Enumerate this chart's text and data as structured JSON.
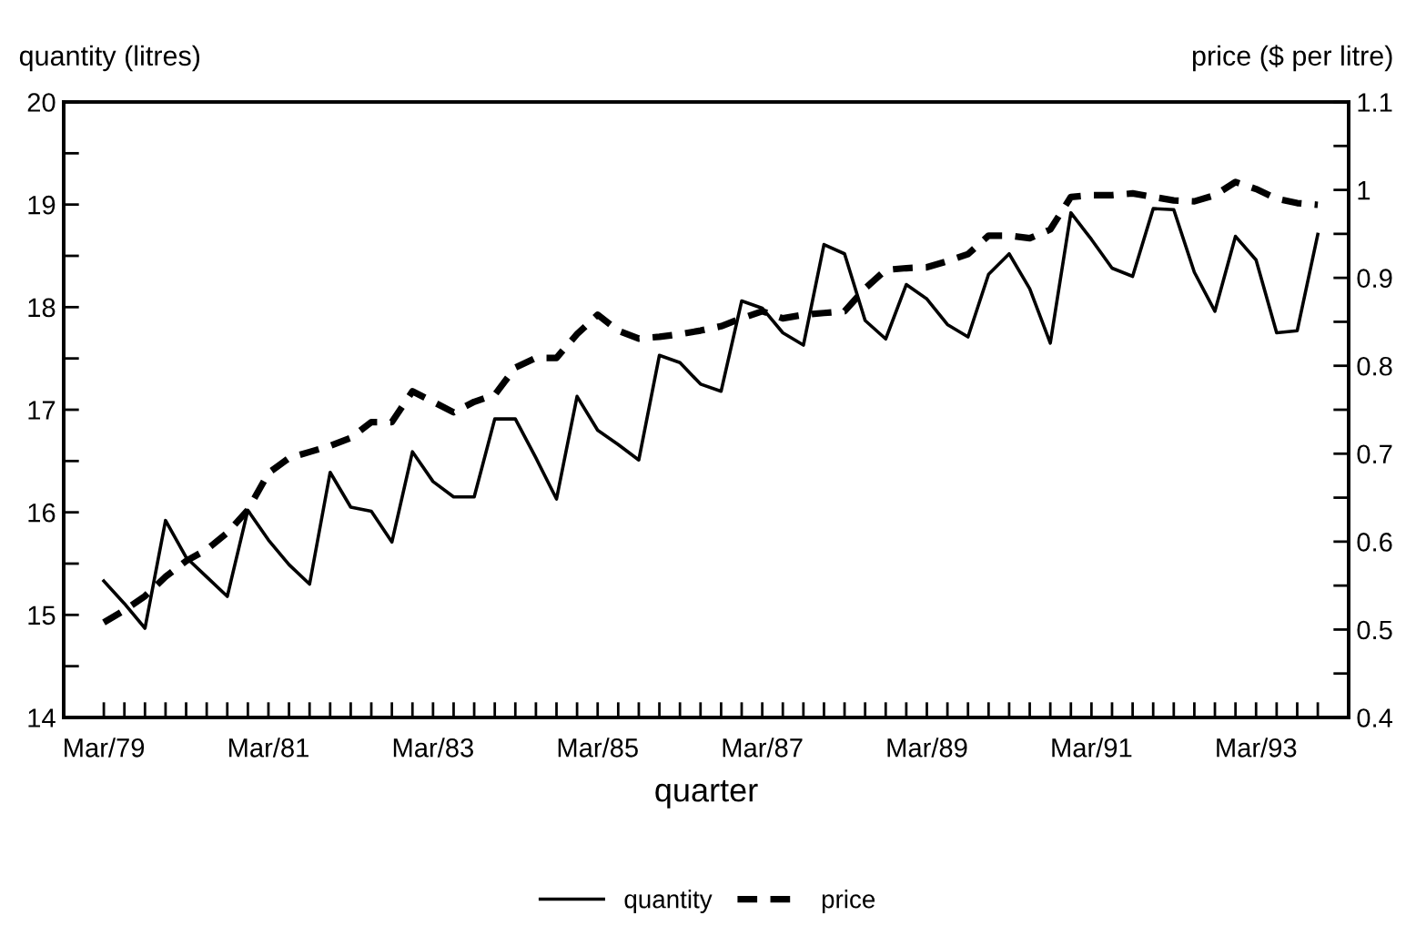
{
  "chart_data": {
    "type": "line",
    "xlabel": "quarter",
    "ylabel": "quantity (litres)",
    "y2label": "price ($ per litre)",
    "categories": [
      "Mar/79",
      null,
      null,
      null,
      null,
      null,
      null,
      null,
      "Mar/81",
      null,
      null,
      null,
      null,
      null,
      null,
      null,
      "Mar/83",
      null,
      null,
      null,
      null,
      null,
      null,
      null,
      "Mar/85",
      null,
      null,
      null,
      null,
      null,
      null,
      null,
      "Mar/87",
      null,
      null,
      null,
      null,
      null,
      null,
      null,
      "Mar/89",
      null,
      null,
      null,
      null,
      null,
      null,
      null,
      "Mar/91",
      null,
      null,
      null,
      null,
      null,
      null,
      null,
      "Mar/93",
      null,
      null,
      null
    ],
    "series": [
      {
        "name": "quantity",
        "color": "#000000",
        "line_style": "solid",
        "values": [
          15.33,
          15.11,
          14.87,
          15.92,
          15.56,
          15.37,
          15.18,
          16.02,
          15.73,
          15.49,
          15.3,
          16.39,
          16.05,
          16.01,
          15.71,
          16.59,
          16.3,
          16.15,
          16.15,
          16.91,
          16.91,
          16.53,
          16.13,
          17.13,
          16.8,
          16.66,
          16.51,
          17.53,
          17.46,
          17.25,
          17.18,
          18.06,
          17.99,
          17.75,
          17.63,
          18.61,
          18.52,
          17.87,
          17.69,
          18.22,
          18.08,
          17.83,
          17.71,
          18.32,
          18.52,
          18.18,
          17.65,
          18.92,
          18.66,
          18.38,
          18.3,
          18.96,
          18.95,
          18.34,
          17.96,
          18.69,
          18.46,
          17.75,
          17.77,
          18.71
        ]
      },
      {
        "name": "price",
        "color": "#000000",
        "line_style": "dashed",
        "axis": "y2",
        "values": [
          0.508,
          0.522,
          0.538,
          0.56,
          0.578,
          0.591,
          0.61,
          0.636,
          0.678,
          0.695,
          0.702,
          0.709,
          0.718,
          0.736,
          0.736,
          0.771,
          0.759,
          0.747,
          0.759,
          0.767,
          0.798,
          0.809,
          0.809,
          0.836,
          0.858,
          0.84,
          0.831,
          0.833,
          0.836,
          0.84,
          0.845,
          0.854,
          0.862,
          0.854,
          0.858,
          0.86,
          0.862,
          0.888,
          0.909,
          0.911,
          0.912,
          0.919,
          0.927,
          0.948,
          0.948,
          0.945,
          0.955,
          0.992,
          0.994,
          0.994,
          0.996,
          0.992,
          0.988,
          0.987,
          0.994,
          1.009,
          1.001,
          0.99,
          0.985,
          0.983
        ]
      }
    ],
    "ylim": [
      14,
      20
    ],
    "yticks": [
      14,
      {
        "value": 14.5,
        "label": null
      },
      15,
      {
        "value": 15.5,
        "label": null
      },
      16,
      {
        "value": 16.5,
        "label": null
      },
      17,
      {
        "value": 17.5,
        "label": null
      },
      18,
      {
        "value": 18.5,
        "label": null
      },
      19,
      {
        "value": 19.5,
        "label": null
      },
      20
    ],
    "y2lim": [
      0.4,
      1.1
    ],
    "y2ticks": [
      0.4,
      {
        "value": 0.45,
        "label": null
      },
      0.5,
      {
        "value": 0.55,
        "label": null
      },
      0.6,
      {
        "value": 0.65,
        "label": null
      },
      0.7,
      {
        "value": 0.75,
        "label": null
      },
      0.8,
      {
        "value": 0.85,
        "label": null
      },
      0.9,
      {
        "value": 0.95,
        "label": null
      },
      1,
      {
        "value": 1.05,
        "label": null
      },
      1.1
    ],
    "grid": false,
    "legend": "bottom",
    "marker": "none"
  }
}
